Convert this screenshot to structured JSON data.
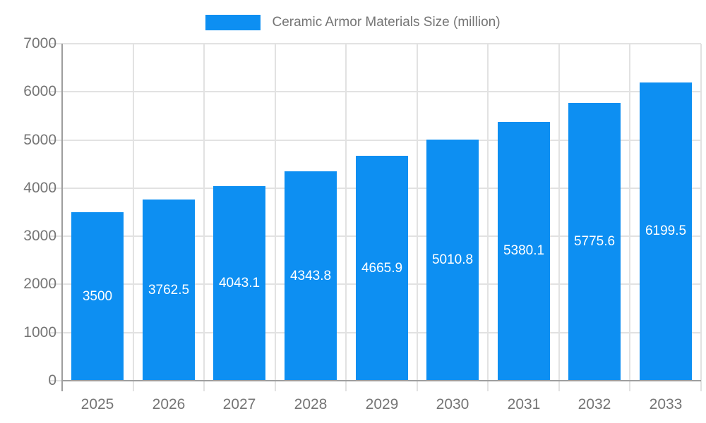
{
  "legend": {
    "label": "Ceramic Armor Materials Size (million)"
  },
  "chart_data": {
    "type": "bar",
    "title": "Ceramic Armor Materials Size (million)",
    "categories": [
      "2025",
      "2026",
      "2027",
      "2028",
      "2029",
      "2030",
      "2031",
      "2032",
      "2033"
    ],
    "values": [
      3500,
      3762.5,
      4043.1,
      4343.8,
      4665.9,
      5010.8,
      5380.1,
      5775.6,
      6199.5
    ],
    "value_labels": [
      "3500",
      "3762.5",
      "4043.1",
      "4343.8",
      "4665.9",
      "5010.8",
      "5380.1",
      "5775.6",
      "6199.5"
    ],
    "xlabel": "",
    "ylabel": "",
    "ylim": [
      0,
      7000
    ],
    "y_ticks": [
      0,
      1000,
      2000,
      3000,
      4000,
      5000,
      6000,
      7000
    ],
    "grid": true,
    "legend_position": "top-center",
    "colors": {
      "bar": "#0d8ff2",
      "tick_text": "#757575",
      "legend_text": "#757575",
      "grid": "#e2e2e2",
      "axis": "#9e9e9e",
      "bar_value_text": "#ffffff",
      "background": "#ffffff"
    }
  }
}
